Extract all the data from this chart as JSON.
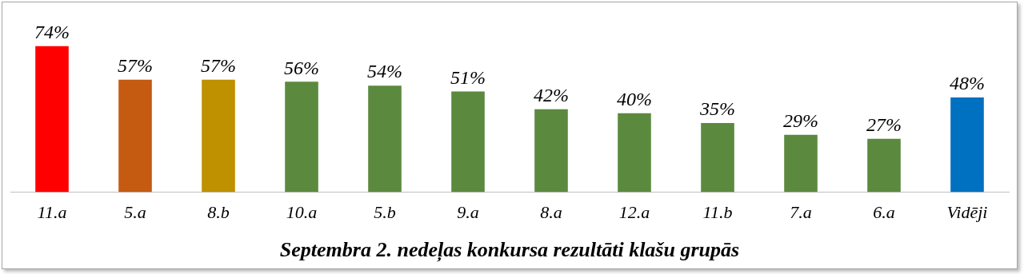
{
  "chart_data": {
    "type": "bar",
    "title": "Septembra 2. nedeļas konkursa rezultāti klašu grupās",
    "categories": [
      "11.a",
      "5.a",
      "8.b",
      "10.a",
      "5.b",
      "9.a",
      "8.a",
      "12.a",
      "11.b",
      "7.a",
      "6.a",
      "Vidēji"
    ],
    "values": [
      74,
      57,
      57,
      56,
      54,
      51,
      42,
      40,
      35,
      29,
      27,
      48
    ],
    "colors": [
      "#ff0000",
      "#c55a11",
      "#bf9000",
      "#5b8a3e",
      "#5b8a3e",
      "#5b8a3e",
      "#5b8a3e",
      "#5b8a3e",
      "#5b8a3e",
      "#5b8a3e",
      "#5b8a3e",
      "#0070c0"
    ],
    "value_labels": [
      "74%",
      "57%",
      "57%",
      "56%",
      "54%",
      "51%",
      "42%",
      "40%",
      "35%",
      "29%",
      "27%",
      "48%"
    ],
    "grid": false,
    "legend": false
  }
}
